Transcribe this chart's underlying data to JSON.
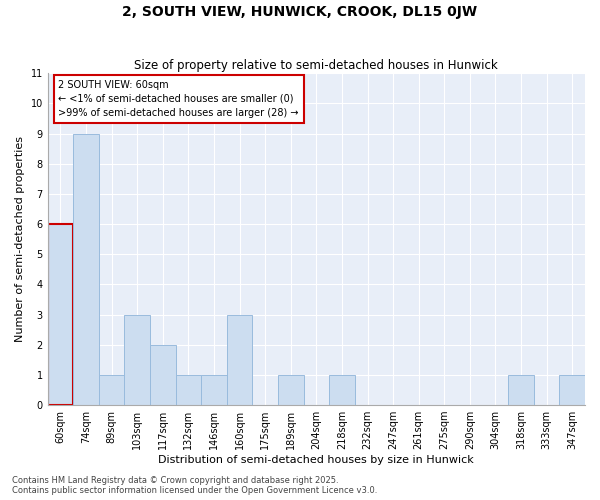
{
  "title": "2, SOUTH VIEW, HUNWICK, CROOK, DL15 0JW",
  "subtitle": "Size of property relative to semi-detached houses in Hunwick",
  "xlabel": "Distribution of semi-detached houses by size in Hunwick",
  "ylabel": "Number of semi-detached properties",
  "categories": [
    "60sqm",
    "74sqm",
    "89sqm",
    "103sqm",
    "117sqm",
    "132sqm",
    "146sqm",
    "160sqm",
    "175sqm",
    "189sqm",
    "204sqm",
    "218sqm",
    "232sqm",
    "247sqm",
    "261sqm",
    "275sqm",
    "290sqm",
    "304sqm",
    "318sqm",
    "333sqm",
    "347sqm"
  ],
  "values": [
    6,
    9,
    1,
    3,
    2,
    1,
    1,
    3,
    0,
    1,
    0,
    1,
    0,
    0,
    0,
    0,
    0,
    0,
    1,
    0,
    1
  ],
  "highlight_index": 0,
  "bar_color": "#ccddf0",
  "bar_edge_color": "#99bbdd",
  "highlight_bar_edge_color": "#cc0000",
  "background_color": "#ffffff",
  "plot_bg_color": "#e8eef8",
  "grid_color": "#ffffff",
  "annotation_box_text": "2 SOUTH VIEW: 60sqm\n← <1% of semi-detached houses are smaller (0)\n>99% of semi-detached houses are larger (28) →",
  "annotation_box_color": "#ffffff",
  "annotation_box_edge_color": "#cc0000",
  "ylim": [
    0,
    11
  ],
  "yticks": [
    0,
    1,
    2,
    3,
    4,
    5,
    6,
    7,
    8,
    9,
    10,
    11
  ],
  "footnote": "Contains HM Land Registry data © Crown copyright and database right 2025.\nContains public sector information licensed under the Open Government Licence v3.0.",
  "title_fontsize": 10,
  "subtitle_fontsize": 8.5,
  "axis_label_fontsize": 8,
  "tick_fontsize": 7,
  "annotation_fontsize": 7,
  "footnote_fontsize": 6
}
